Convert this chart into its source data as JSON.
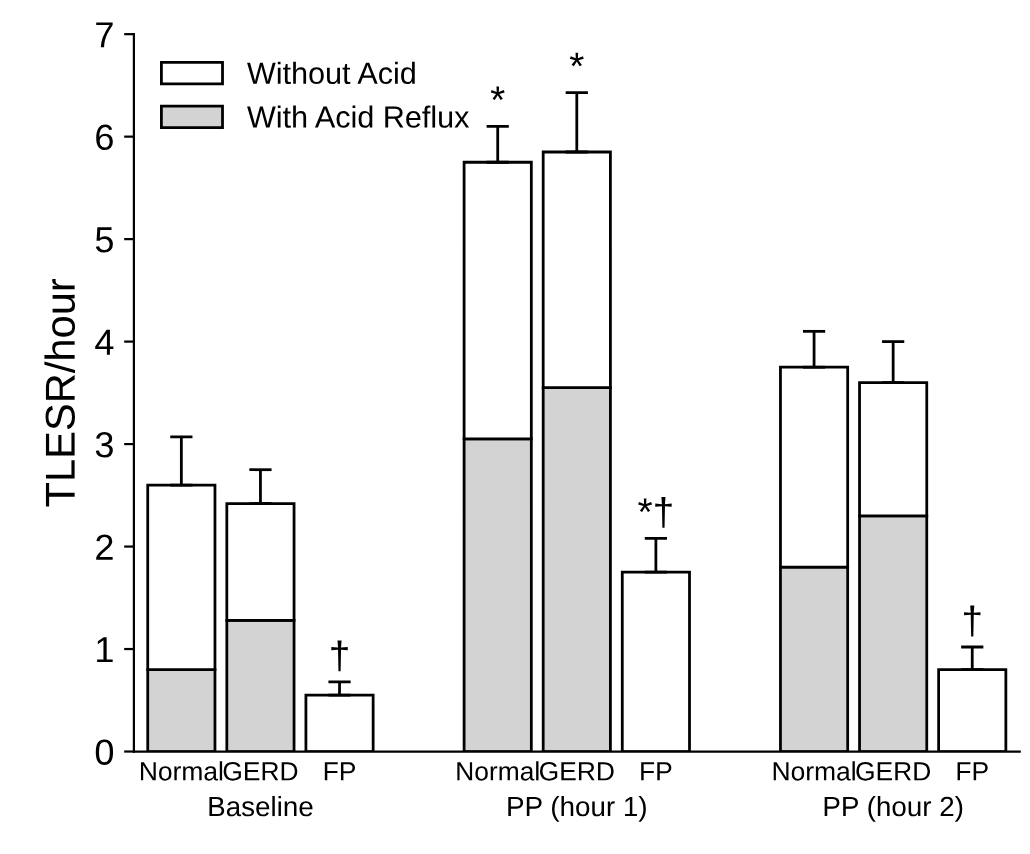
{
  "chart_data": {
    "type": "bar",
    "stacked": true,
    "ylabel": "TLESR/hour",
    "categories": [
      "Normal",
      "GERD",
      "FP",
      null,
      "Normal",
      "GERD",
      "FP",
      null,
      "Normal",
      "GERD",
      "FP"
    ],
    "series": [
      {
        "name": "With Acid Reflux",
        "color": "#d3d3d3",
        "values": [
          0.8,
          1.28,
          0,
          null,
          3.05,
          3.55,
          0,
          null,
          1.8,
          2.3,
          0
        ]
      },
      {
        "name": "Without Acid",
        "color": "#ffffff",
        "values": [
          1.8,
          1.14,
          0.55,
          null,
          2.7,
          2.3,
          1.75,
          null,
          1.95,
          1.3,
          0.8
        ],
        "errors": [
          [
            2.6,
            3.07
          ],
          [
            2.42,
            2.75
          ],
          [
            0.55,
            0.68
          ],
          null,
          [
            5.75,
            6.1
          ],
          [
            5.85,
            6.43
          ],
          [
            1.75,
            2.08
          ],
          null,
          [
            3.75,
            4.1
          ],
          [
            3.6,
            4.0
          ],
          [
            0.8,
            1.02
          ]
        ],
        "value_labels": [
          null,
          null,
          "†",
          null,
          "*",
          "*",
          "*†",
          null,
          null,
          null,
          "†"
        ]
      }
    ],
    "annotations": [
      "Baseline",
      "PP (hour 1)",
      "PP (hour 2)"
    ],
    "ylim": [
      0,
      7
    ],
    "yticks": [
      0,
      1,
      2,
      3,
      4,
      5,
      6,
      7
    ],
    "grid": false,
    "legend": "top left"
  }
}
